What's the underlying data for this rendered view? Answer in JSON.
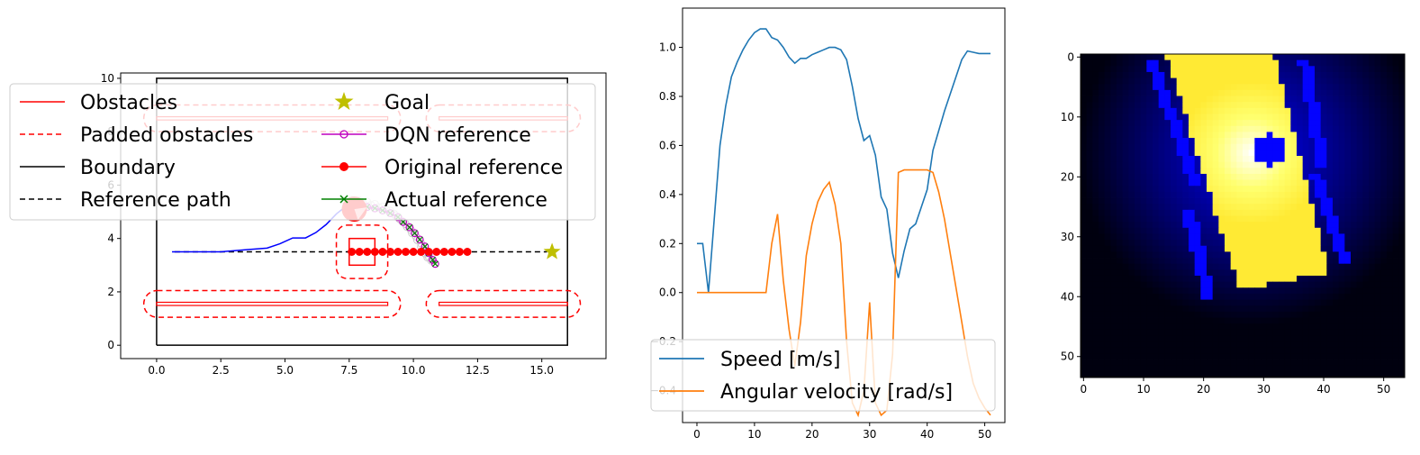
{
  "chart_data": [
    {
      "type": "line",
      "xlim": [
        -1.4,
        17.5
      ],
      "ylim": [
        -0.5,
        10.2
      ],
      "xticks": [
        0.0,
        2.5,
        5.0,
        7.5,
        10.0,
        12.5,
        15.0
      ],
      "xtick_labels": [
        "0.0",
        "2.5",
        "5.0",
        "7.5",
        "10.0",
        "12.5",
        "15.0"
      ],
      "yticks": [
        0,
        2,
        4,
        6,
        8,
        10
      ],
      "ytick_labels": [
        "0",
        "2",
        "4",
        "6",
        "8",
        "10"
      ],
      "legend_placement": "upper-left (overlapping)",
      "legend": [
        {
          "label": "Obstacles",
          "color": "#ff0000",
          "style": "solid"
        },
        {
          "label": "Padded obstacles",
          "color": "#ff0000",
          "style": "dashed"
        },
        {
          "label": "Boundary",
          "color": "#000000",
          "style": "solid"
        },
        {
          "label": "Reference path",
          "color": "#000000",
          "style": "dashed"
        },
        {
          "label": "Goal",
          "color": "#bfbf00",
          "style": "star"
        },
        {
          "label": "DQN reference",
          "color": "#bf00bf",
          "style": "line-open-circle"
        },
        {
          "label": "Original reference",
          "color": "#ff0000",
          "style": "line-filled-circle"
        },
        {
          "label": "Actual reference",
          "color": "#008000",
          "style": "line-x"
        }
      ],
      "boundary": [
        [
          0,
          0
        ],
        [
          16,
          0
        ],
        [
          16,
          10
        ],
        [
          0,
          10
        ]
      ],
      "obstacles": [
        {
          "x1": 0,
          "x2": 9,
          "y": 8.5
        },
        {
          "x1": 11,
          "x2": 16,
          "y": 8.5
        },
        {
          "x1": 0,
          "x2": 9,
          "y": 1.55
        },
        {
          "x1": 11,
          "x2": 16,
          "y": 1.55
        },
        {
          "cx": 8,
          "cy": 3.5,
          "size": 1.0
        }
      ],
      "reference_path": {
        "x": [
          0.7,
          15.2
        ],
        "y": [
          3.5,
          3.5
        ]
      },
      "goal": {
        "x": 15.4,
        "y": 3.5
      },
      "actual_trajectory": {
        "x": [
          0.6,
          1.5,
          2.5,
          3.5,
          4.3,
          4.8,
          5.3,
          5.8,
          6.2,
          6.6,
          7.0,
          7.3,
          7.55
        ],
        "y": [
          3.5,
          3.5,
          3.5,
          3.58,
          3.64,
          3.8,
          4.02,
          4.02,
          4.22,
          4.52,
          4.92,
          5.15,
          5.3
        ]
      },
      "original_reference": {
        "x": [
          7.6,
          7.9,
          8.2,
          8.5,
          8.8,
          9.1,
          9.4,
          9.7,
          10.0,
          10.3,
          10.6,
          10.9,
          11.2,
          11.5,
          11.8,
          12.1
        ],
        "y": [
          3.5,
          3.5,
          3.5,
          3.5,
          3.5,
          3.5,
          3.5,
          3.5,
          3.5,
          3.5,
          3.5,
          3.5,
          3.5,
          3.5,
          3.5,
          3.5
        ]
      },
      "dqn_reference": {
        "x": [
          7.6,
          7.9,
          8.2,
          8.5,
          8.8,
          9.1,
          9.4,
          9.6,
          9.85,
          10.05,
          10.25,
          10.45,
          10.6,
          10.75,
          10.85
        ],
        "y": [
          5.2,
          5.2,
          5.18,
          5.13,
          5.05,
          4.95,
          4.8,
          4.62,
          4.42,
          4.2,
          3.96,
          3.7,
          3.45,
          3.2,
          3.05
        ]
      },
      "robot": {
        "x": 7.7,
        "y": 5.1
      }
    },
    {
      "type": "line",
      "xlim": [
        -2.5,
        53.5
      ],
      "ylim": [
        -0.53,
        1.16
      ],
      "xticks": [
        0,
        10,
        20,
        30,
        40,
        50
      ],
      "xtick_labels": [
        "0",
        "10",
        "20",
        "30",
        "40",
        "50"
      ],
      "yticks": [
        -0.4,
        -0.2,
        0.0,
        0.2,
        0.4,
        0.6,
        0.8,
        1.0
      ],
      "ytick_labels": [
        "−0.4",
        "−0.2",
        "0.0",
        "0.2",
        "0.4",
        "0.6",
        "0.8",
        "1.0"
      ],
      "legend_placement": "lower-left",
      "series": [
        {
          "name": "Speed [m/s]",
          "color": "#1f77b4",
          "x": [
            0,
            1,
            2,
            3,
            4,
            5,
            6,
            7,
            8,
            9,
            10,
            11,
            12,
            13,
            14,
            15,
            16,
            17,
            18,
            19,
            20,
            21,
            22,
            23,
            24,
            25,
            26,
            27,
            28,
            29,
            30,
            31,
            32,
            33,
            34,
            35,
            36,
            37,
            38,
            39,
            40,
            41,
            42,
            43,
            44,
            45,
            46,
            47,
            48,
            49,
            50,
            51
          ],
          "y": [
            0.2,
            0.2,
            0.0,
            0.3,
            0.6,
            0.76,
            0.88,
            0.94,
            0.99,
            1.03,
            1.06,
            1.075,
            1.075,
            1.04,
            1.03,
            1.0,
            0.96,
            0.935,
            0.955,
            0.955,
            0.97,
            0.98,
            0.99,
            1.0,
            1.0,
            0.99,
            0.95,
            0.84,
            0.71,
            0.62,
            0.64,
            0.56,
            0.39,
            0.34,
            0.16,
            0.06,
            0.17,
            0.26,
            0.28,
            0.35,
            0.42,
            0.58,
            0.66,
            0.74,
            0.81,
            0.88,
            0.95,
            0.985,
            0.98,
            0.975,
            0.975,
            0.975
          ]
        },
        {
          "name": "Angular velocity [rad/s]",
          "color": "#ff7f0e",
          "x": [
            0,
            2,
            4,
            6,
            8,
            10,
            12,
            13,
            14,
            15,
            16,
            17,
            18,
            19,
            20,
            21,
            22,
            23,
            24,
            25,
            26,
            27,
            28,
            29,
            30,
            31,
            32,
            33,
            34,
            35,
            36,
            37,
            38,
            39,
            40,
            41,
            42,
            43,
            44,
            45,
            46,
            47,
            48,
            49,
            50,
            51
          ],
          "y": [
            0,
            0,
            0,
            0,
            0,
            0,
            0,
            0.2,
            0.32,
            0.05,
            -0.15,
            -0.3,
            -0.12,
            0.15,
            0.28,
            0.37,
            0.42,
            0.45,
            0.36,
            0.2,
            -0.2,
            -0.45,
            -0.5,
            -0.4,
            -0.04,
            -0.45,
            -0.5,
            -0.48,
            -0.25,
            0.49,
            0.5,
            0.5,
            0.5,
            0.5,
            0.5,
            0.49,
            0.41,
            0.3,
            0.16,
            0.02,
            -0.12,
            -0.26,
            -0.37,
            -0.43,
            -0.47,
            -0.5
          ]
        }
      ]
    },
    {
      "type": "heatmap",
      "rows": 54,
      "cols": 54,
      "xlim": [
        -0.5,
        53.5
      ],
      "ylim": [
        53.5,
        -0.5
      ],
      "xticks": [
        0,
        10,
        20,
        30,
        40,
        50
      ],
      "xtick_labels": [
        "0",
        "10",
        "20",
        "30",
        "40",
        "50"
      ],
      "yticks": [
        0,
        10,
        20,
        30,
        40,
        50
      ],
      "ytick_labels": [
        "0",
        "10",
        "20",
        "30",
        "40",
        "50"
      ],
      "colormap": "gnuplot2",
      "free_region": [
        [
          14,
          0
        ],
        [
          32,
          0
        ],
        [
          41,
          36
        ],
        [
          26,
          39
        ]
      ],
      "blobs": [
        {
          "polygon": [
            [
              10.5,
              1
            ],
            [
              12.5,
              1
            ],
            [
              20,
              22
            ],
            [
              18,
              22
            ]
          ]
        },
        {
          "polygon": [
            [
              16.5,
              26
            ],
            [
              18.5,
              25
            ],
            [
              22,
              41
            ],
            [
              20,
              41
            ]
          ]
        },
        {
          "polygon": [
            [
              36,
              1
            ],
            [
              38,
              1
            ],
            [
              41,
              19
            ],
            [
              39,
              19
            ]
          ]
        },
        {
          "polygon": [
            [
              38,
              20
            ],
            [
              40,
              20
            ],
            [
              45,
              35
            ],
            [
              43,
              35
            ]
          ]
        }
      ],
      "marker": {
        "x": 31,
        "y": 15.5
      },
      "light_center": {
        "x": 28,
        "y": 16
      }
    }
  ],
  "legend_a": {
    "l0": "Obstacles",
    "l1": "Padded obstacles",
    "l2": "Boundary",
    "l3": "Reference path",
    "l4": "Goal",
    "l5": "DQN reference",
    "l6": "Original reference",
    "l7": "Actual reference"
  },
  "legend_b": {
    "l0": "Speed [m/s]",
    "l1": "Angular velocity [rad/s]"
  }
}
